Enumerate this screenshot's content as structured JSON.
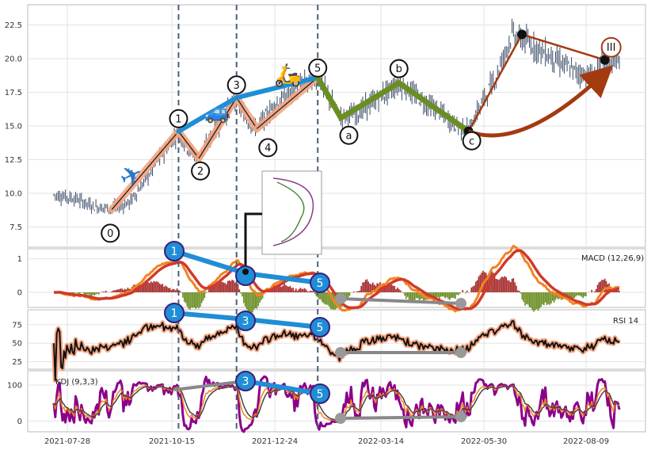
{
  "chart_data": {
    "type": "candlestick",
    "x_dates": [
      "2021-07-28",
      "2021-10-15",
      "2021-12-24",
      "2022-03-14",
      "2022-05-30",
      "2022-08-09"
    ],
    "price": {
      "yticks": [
        "7.5",
        "10.0",
        "12.5",
        "15.0",
        "17.5",
        "20.0",
        "22.5"
      ],
      "ylim": [
        6.0,
        24.0
      ],
      "path": [
        [
          0,
          9.9
        ],
        [
          15,
          9.6
        ],
        [
          28,
          9.0
        ],
        [
          40,
          8.9
        ],
        [
          52,
          9.3
        ],
        [
          62,
          10.8
        ],
        [
          72,
          12.5
        ],
        [
          86,
          14.6
        ],
        [
          92,
          13.4
        ],
        [
          100,
          12.6
        ],
        [
          112,
          14.8
        ],
        [
          126,
          17.1
        ],
        [
          132,
          15.6
        ],
        [
          140,
          14.8
        ],
        [
          152,
          16.5
        ],
        [
          170,
          18.0
        ],
        [
          182,
          18.6
        ],
        [
          190,
          17.0
        ],
        [
          198,
          15.6
        ],
        [
          210,
          16.0
        ],
        [
          228,
          17.4
        ],
        [
          238,
          18.2
        ],
        [
          250,
          17.2
        ],
        [
          264,
          16.2
        ],
        [
          278,
          15.0
        ],
        [
          286,
          14.6
        ],
        [
          294,
          16.5
        ],
        [
          305,
          18.7
        ],
        [
          316,
          21.8
        ],
        [
          330,
          21.0
        ],
        [
          345,
          20.0
        ],
        [
          360,
          19.0
        ],
        [
          372,
          18.7
        ],
        [
          380,
          19.9
        ]
      ],
      "wave_points": [
        {
          "label": "0",
          "i": 40,
          "v": 8.8
        },
        {
          "label": "1",
          "i": 86,
          "v": 14.6
        },
        {
          "label": "2",
          "i": 100,
          "v": 12.6
        },
        {
          "label": "3",
          "i": 126,
          "v": 17.1
        },
        {
          "label": "4",
          "i": 140,
          "v": 14.8
        },
        {
          "label": "5",
          "i": 182,
          "v": 18.6
        },
        {
          "label": "a",
          "i": 198,
          "v": 15.6
        },
        {
          "label": "b",
          "i": 238,
          "v": 18.2
        },
        {
          "label": "c",
          "i": 286,
          "v": 14.6
        },
        {
          "label": "III",
          "i": 380,
          "v": 19.9
        }
      ],
      "vlines": [
        86,
        126,
        182
      ]
    },
    "macd": {
      "label": "MACD (12,26,9)",
      "yticks": [
        "0",
        "1"
      ],
      "ylim": [
        -0.45,
        1.3
      ]
    },
    "rsi": {
      "label": "RSI 14",
      "yticks": [
        "25",
        "50",
        "75"
      ],
      "ylim": [
        15,
        95
      ]
    },
    "kdj": {
      "label": "KDJ (9,3,3)",
      "yticks": [
        "0",
        "100"
      ],
      "ylim": [
        -30,
        140
      ]
    },
    "emoji": {
      "plane": "✈",
      "car": "🚙",
      "scooter": "🛵"
    },
    "colors": {
      "candle": "#3a4a66",
      "wave_up": "#f4a582",
      "wave_blue": "#1f8ed6",
      "wave_green": "#6b8e23",
      "brown": "#a33a10",
      "macd_orange": "#f58220",
      "macd_red": "#d03a2a",
      "kdj_purple": "#8b008b",
      "divergence_gray": "#888888"
    }
  }
}
